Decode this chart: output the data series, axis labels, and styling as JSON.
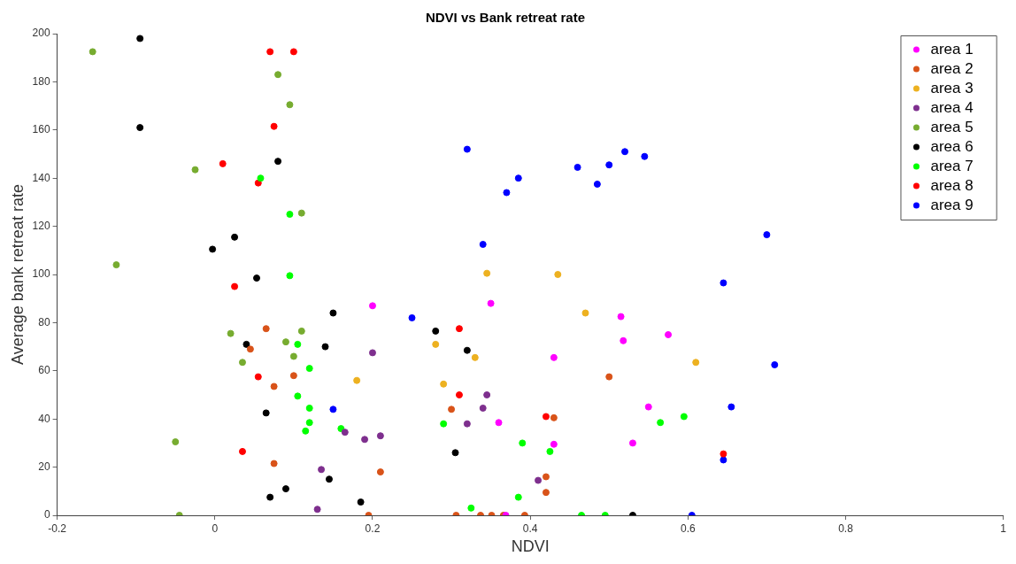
{
  "chart_data": {
    "type": "scatter",
    "title": "NDVI vs Bank retreat rate",
    "xlabel": "NDVI",
    "ylabel": "Average bank retreat rate",
    "xlim": [
      -0.2,
      1
    ],
    "xticks": [
      -0.2,
      0,
      0.2,
      0.4,
      0.6,
      0.8,
      1
    ],
    "ylim": [
      0,
      200
    ],
    "yticks": [
      0,
      20,
      40,
      60,
      80,
      100,
      120,
      140,
      160,
      180,
      200
    ],
    "legend": "top right",
    "marker": "circle",
    "series": [
      {
        "name": "area 1",
        "color": "#ff00ff",
        "x": [
          0.2,
          0.35,
          0.36,
          0.43,
          0.43,
          0.369,
          0.515,
          0.518,
          0.575,
          0.55,
          0.53
        ],
        "values": [
          87,
          88,
          38.5,
          65.5,
          29.5,
          0,
          82.5,
          72.5,
          75,
          45,
          30
        ]
      },
      {
        "name": "area 2",
        "color": "#d95319",
        "x": [
          0.065,
          0.045,
          0.075,
          0.1,
          0.075,
          0.21,
          0.195,
          0.3,
          0.306,
          0.337,
          0.351,
          0.366,
          0.393,
          0.42,
          0.42,
          0.43,
          0.5
        ],
        "values": [
          77.5,
          69,
          53.5,
          58,
          21.5,
          18,
          0,
          44,
          0,
          0,
          0,
          0,
          0,
          16,
          9.5,
          40.5,
          57.5
        ]
      },
      {
        "name": "area 3",
        "color": "#edb120",
        "x": [
          0.28,
          0.29,
          0.33,
          0.18,
          0.345,
          0.435,
          0.47,
          0.61
        ],
        "values": [
          71,
          54.5,
          65.5,
          56,
          100.5,
          100,
          84,
          63.5
        ]
      },
      {
        "name": "area 4",
        "color": "#7e2f8e",
        "x": [
          0.2,
          0.345,
          0.34,
          0.32,
          0.21,
          0.19,
          0.165,
          0.135,
          0.13,
          0.41
        ],
        "values": [
          67.5,
          50,
          44.5,
          38,
          33,
          31.5,
          34.5,
          19,
          2.5,
          14.5
        ]
      },
      {
        "name": "area 5",
        "color": "#77ac30",
        "x": [
          -0.155,
          -0.125,
          -0.025,
          0.08,
          0.095,
          0.11,
          0.02,
          0.035,
          0.09,
          0.1,
          0.11,
          -0.05,
          -0.045
        ],
        "values": [
          192.5,
          104,
          143.5,
          183,
          170.5,
          125.5,
          75.5,
          63.5,
          72,
          66,
          76.5,
          30.5,
          0
        ]
      },
      {
        "name": "area 6",
        "color": "#000000",
        "x": [
          -0.095,
          -0.095,
          0.08,
          0.025,
          -0.003,
          0.053,
          0.04,
          0.15,
          0.14,
          0.065,
          0.07,
          0.09,
          0.145,
          0.185,
          0.28,
          0.32,
          0.305,
          0.53
        ],
        "values": [
          198,
          161,
          147,
          115.5,
          110.5,
          98.5,
          71,
          84,
          70,
          42.5,
          7.5,
          11,
          15,
          5.5,
          76.5,
          68.5,
          26,
          0
        ]
      },
      {
        "name": "area 7",
        "color": "#00ff00",
        "x": [
          0.058,
          0.095,
          0.095,
          0.105,
          0.12,
          0.105,
          0.12,
          0.12,
          0.115,
          0.16,
          0.29,
          0.325,
          0.39,
          0.385,
          0.425,
          0.465,
          0.495,
          0.565,
          0.595
        ],
        "values": [
          140,
          125,
          99.5,
          71,
          61,
          49.5,
          44.5,
          38.5,
          35,
          36,
          38,
          3,
          30,
          7.5,
          26.5,
          0,
          0,
          38.5,
          41
        ]
      },
      {
        "name": "area 8",
        "color": "#ff0000",
        "x": [
          0.07,
          0.1,
          0.075,
          0.01,
          0.055,
          0.025,
          0.055,
          0.035,
          0.31,
          0.31,
          0.42,
          0.645
        ],
        "values": [
          192.5,
          192.5,
          161.5,
          146,
          138,
          95,
          57.5,
          26.5,
          77.5,
          50,
          41,
          25.5
        ]
      },
      {
        "name": "area 9",
        "color": "#0000ff",
        "x": [
          0.32,
          0.385,
          0.37,
          0.34,
          0.46,
          0.5,
          0.485,
          0.52,
          0.545,
          0.25,
          0.15,
          0.7,
          0.645,
          0.71,
          0.655,
          0.645,
          0.605
        ],
        "values": [
          152,
          140,
          134,
          112.5,
          144.5,
          145.5,
          137.5,
          151,
          149,
          82,
          44,
          116.5,
          96.5,
          62.5,
          45,
          23,
          0
        ]
      }
    ]
  }
}
